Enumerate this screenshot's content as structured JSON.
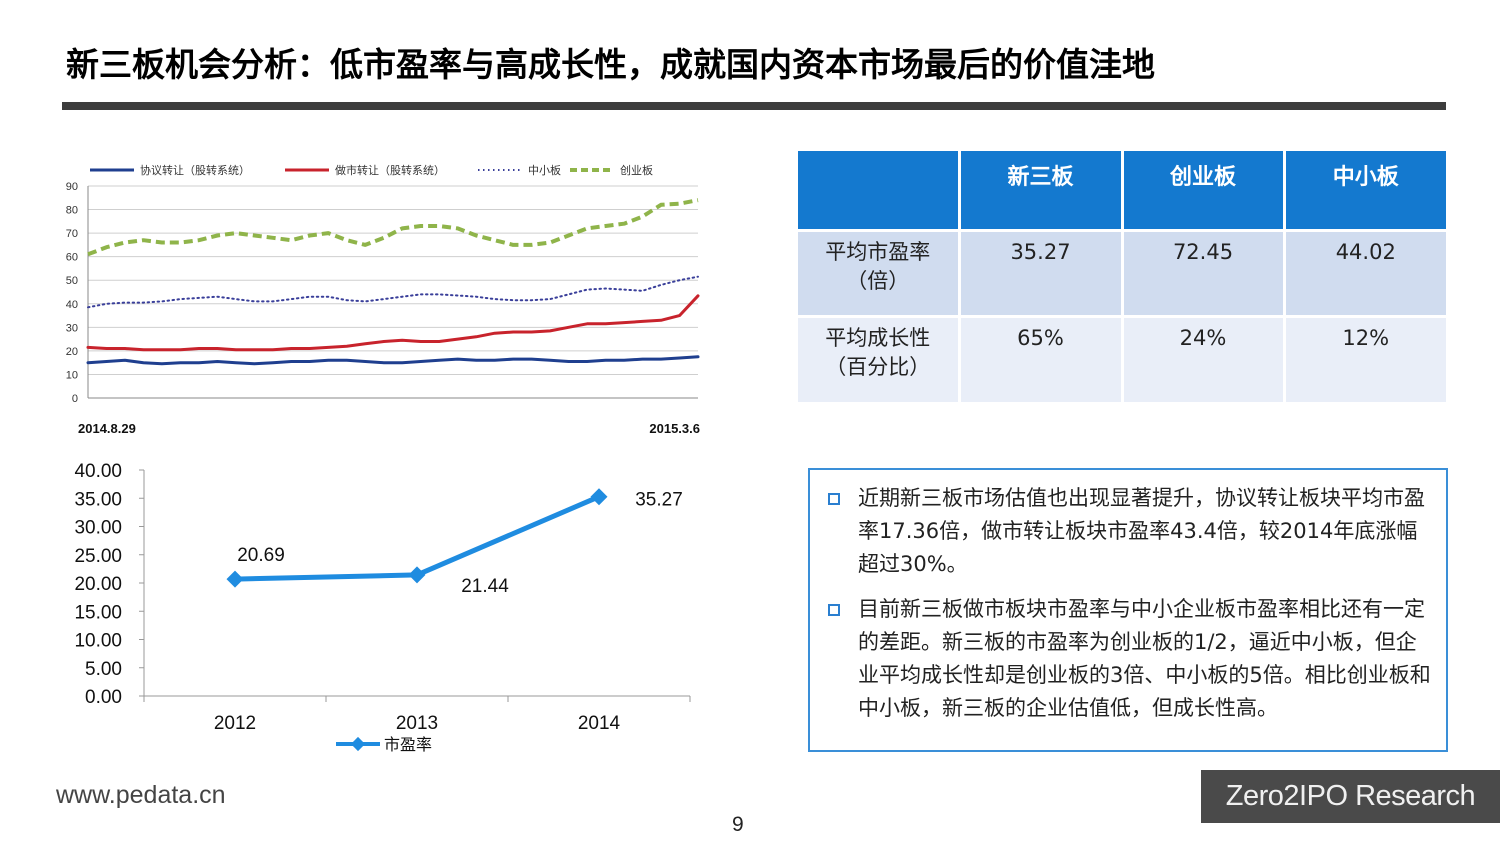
{
  "title": "新三板机会分析：低市盈率与高成长性，成就国内资本市场最后的价值洼地",
  "footer": {
    "url": "www.pedata.cn",
    "page": "9",
    "brand": "Zero2IPO Research"
  },
  "colors": {
    "title_rule": "#3d3d3d",
    "table_header": "#1479cf",
    "row_a": "#d0dcef",
    "row_b": "#e9eef8",
    "accent": "#1f8ce0"
  },
  "table": {
    "headers": [
      "",
      "新三板",
      "创业板",
      "中小板"
    ],
    "rows": [
      {
        "label_line1": "平均市盈率",
        "label_line2": "（倍）",
        "values": [
          "35.27",
          "72.45",
          "44.02"
        ]
      },
      {
        "label_line1": "平均成长性",
        "label_line2": "（百分比）",
        "values": [
          "65%",
          "24%",
          "12%"
        ]
      }
    ]
  },
  "notes": [
    "近期新三板市场估值也出现显著提升，协议转让板块平均市盈率17.36倍，做市转让板块市盈率43.4倍，较2014年底涨幅超过30%。",
    "目前新三板做市板块市盈率与中小企业板市盈率相比还有一定的差距。新三板的市盈率为创业板的1/2，逼近中小板，但企业平均成长性却是创业板的3倍、中小板的5倍。相比创业板和中小板，新三板的企业估值低，但成长性高。"
  ],
  "chart_data": [
    {
      "type": "line",
      "x_start_label": "2014.8.29",
      "x_end_label": "2015.3.6",
      "ylim": [
        0,
        90
      ],
      "yticks": [
        "0",
        "10",
        "20",
        "30",
        "40",
        "50",
        "60",
        "70",
        "80",
        "90"
      ],
      "grid": true,
      "legend": "top",
      "series": [
        {
          "name": "协议转让（股转系统）",
          "color": "#1f3f8f",
          "style": "solid",
          "values": [
            15,
            15.5,
            16,
            15,
            14.5,
            15,
            15,
            15.5,
            15,
            14.5,
            15,
            15.5,
            15.5,
            16,
            16,
            15.5,
            15,
            15,
            15.5,
            16,
            16.5,
            16,
            16,
            16.5,
            16.5,
            16,
            15.5,
            15.5,
            16,
            16,
            16.5,
            16.5,
            17,
            17.5
          ]
        },
        {
          "name": "做市转让（股转系统）",
          "color": "#c8232c",
          "style": "solid",
          "values": [
            21.5,
            21,
            21,
            20.5,
            20.5,
            20.5,
            21,
            21,
            20.5,
            20.5,
            20.5,
            21,
            21,
            21.5,
            22,
            23,
            24,
            24.5,
            24,
            24,
            25,
            26,
            27.5,
            28,
            28,
            28.5,
            30,
            31.5,
            31.5,
            32,
            32.5,
            33,
            35,
            43.4
          ]
        },
        {
          "name": "中小板",
          "color": "#3a3f9a",
          "style": "dotted",
          "values": [
            38.5,
            40,
            40.5,
            40.5,
            41,
            42,
            42.5,
            43,
            42,
            41,
            41,
            42,
            43,
            43,
            41.5,
            41,
            42,
            43,
            44,
            44,
            43.5,
            43,
            42,
            41.5,
            41.5,
            42,
            44,
            46,
            46.5,
            46,
            45.5,
            48,
            50,
            51.5
          ]
        },
        {
          "name": "创业板",
          "color": "#8fb44a",
          "style": "dashed",
          "values": [
            61,
            64,
            66,
            67,
            66,
            66,
            67,
            69,
            70,
            69,
            68,
            67,
            69,
            70,
            67,
            65,
            68,
            72,
            73,
            73,
            72,
            69,
            67,
            65,
            65,
            66,
            69,
            72,
            73,
            74,
            77,
            82,
            82.5,
            84
          ]
        }
      ]
    },
    {
      "type": "line",
      "categories": [
        "2012",
        "2013",
        "2014"
      ],
      "series": [
        {
          "name": "市盈率",
          "values": [
            20.69,
            21.44,
            35.27
          ],
          "color": "#1f8ce0"
        }
      ],
      "labels": [
        "20.69",
        "21.44",
        "35.27"
      ],
      "ylim": [
        0,
        40
      ],
      "yticks": [
        "0.00",
        "5.00",
        "10.00",
        "15.00",
        "20.00",
        "25.00",
        "30.00",
        "35.00",
        "40.00"
      ],
      "grid": false,
      "legend": "bottom"
    }
  ]
}
